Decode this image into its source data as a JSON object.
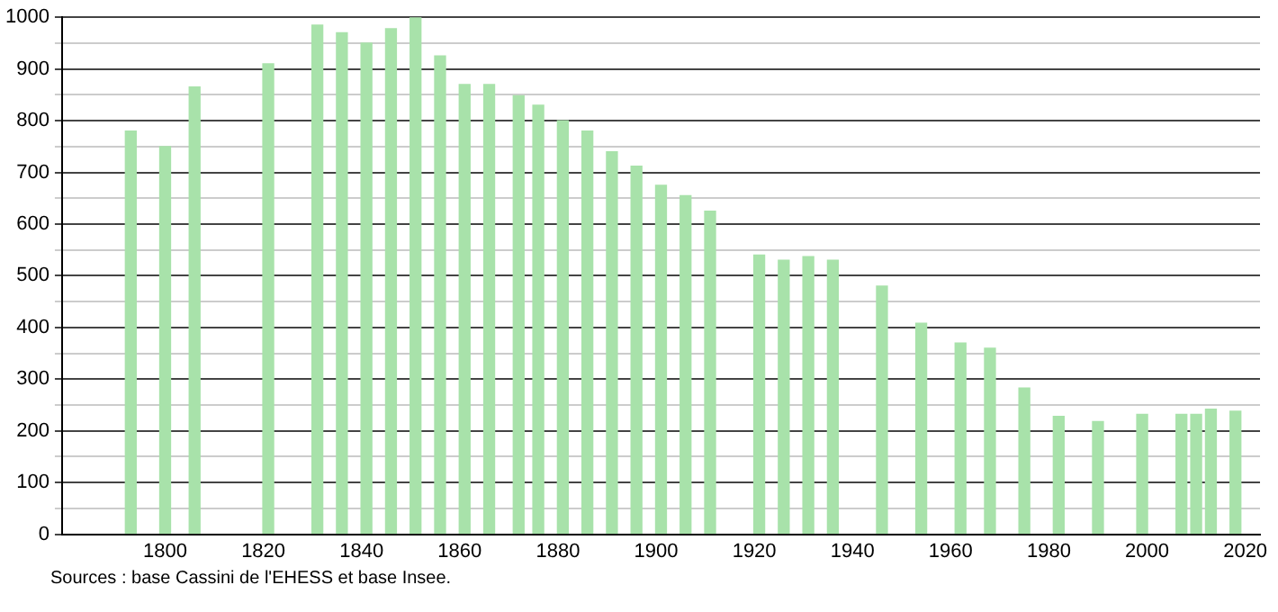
{
  "chart_data": {
    "type": "bar",
    "x": [
      1793,
      1800,
      1806,
      1821,
      1831,
      1836,
      1841,
      1846,
      1851,
      1856,
      1861,
      1866,
      1872,
      1876,
      1881,
      1886,
      1891,
      1896,
      1901,
      1906,
      1911,
      1921,
      1926,
      1931,
      1936,
      1946,
      1954,
      1962,
      1968,
      1975,
      1982,
      1990,
      1999,
      2007,
      2010,
      2013,
      2018
    ],
    "values": [
      780,
      750,
      865,
      910,
      985,
      970,
      950,
      978,
      1000,
      925,
      870,
      870,
      848,
      830,
      800,
      780,
      740,
      712,
      675,
      655,
      625,
      540,
      530,
      537,
      530,
      480,
      408,
      370,
      360,
      283,
      228,
      218,
      232,
      232,
      232,
      242,
      238
    ],
    "color": "#a8e2aa",
    "xlim": [
      1779,
      2023
    ],
    "xticks": [
      1800,
      1820,
      1840,
      1860,
      1880,
      1900,
      1920,
      1940,
      1960,
      1980,
      2000,
      2020
    ],
    "ylim": [
      0,
      1000
    ],
    "yticks": [
      0,
      {
        "value": 50,
        "label": null
      },
      100,
      {
        "value": 150,
        "label": null
      },
      200,
      {
        "value": 250,
        "label": null
      },
      300,
      {
        "value": 350,
        "label": null
      },
      400,
      {
        "value": 450,
        "label": null
      },
      500,
      {
        "value": 550,
        "label": null
      },
      600,
      {
        "value": 650,
        "label": null
      },
      700,
      {
        "value": 750,
        "label": null
      },
      800,
      {
        "value": 850,
        "label": null
      },
      900,
      {
        "value": 950,
        "label": null
      },
      1000
    ],
    "grid": "y",
    "legend": false,
    "annotations": [
      "Sources : base Cassini de l'EHESS et base Insee."
    ]
  }
}
